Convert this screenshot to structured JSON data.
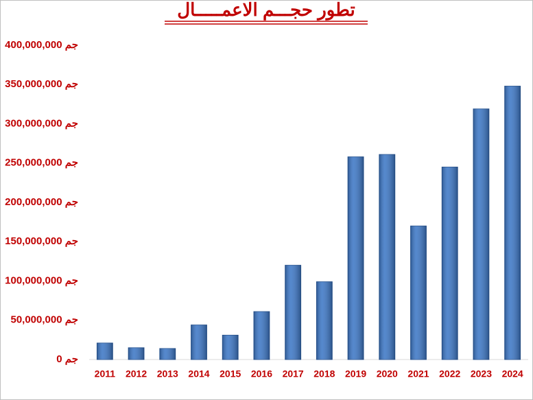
{
  "chart_data": {
    "type": "bar",
    "title": "تطور حجـــم الاعمـــــال",
    "categories": [
      "2011",
      "2012",
      "2013",
      "2014",
      "2015",
      "2016",
      "2017",
      "2018",
      "2019",
      "2020",
      "2021",
      "2022",
      "2023",
      "2024"
    ],
    "values": [
      21000000,
      15000000,
      14000000,
      44000000,
      31000000,
      61000000,
      120000000,
      99000000,
      258000000,
      261000000,
      170000000,
      245000000,
      319000000,
      348000000
    ],
    "color": "#3e78c6",
    "ylim": [
      0,
      400000000
    ],
    "yticks": [
      {
        "value": 0,
        "label": "جم 0"
      },
      {
        "value": 50000000,
        "label": "جم 50,000,000"
      },
      {
        "value": 100000000,
        "label": "جم 100,000,000"
      },
      {
        "value": 150000000,
        "label": "جم 150,000,000"
      },
      {
        "value": 200000000,
        "label": "جم 200,000,000"
      },
      {
        "value": 250000000,
        "label": "جم 250,000,000"
      },
      {
        "value": 300000000,
        "label": "جم 300,000,000"
      },
      {
        "value": 350000000,
        "label": "جم 350,000,000"
      },
      {
        "value": 400000000,
        "label": "جم 400,000,000"
      }
    ],
    "grid": false
  }
}
